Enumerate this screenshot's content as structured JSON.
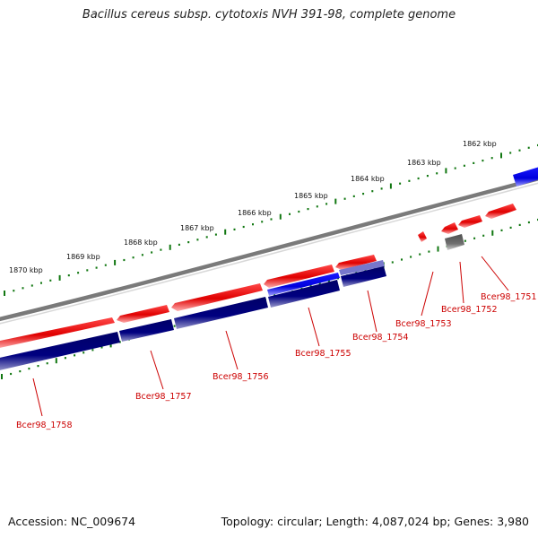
{
  "title": "Bacillus cereus subsp. cytotoxis NVH 391-98, complete genome",
  "footer": {
    "accession": "Accession: NC_009674",
    "summary": "Topology: circular; Length: 4,087,024 bp; Genes: 3,980"
  },
  "colors": {
    "forward_cds": "#ee0000",
    "reverse_cds": "#000077",
    "highlight_blue": "#0000ee",
    "backbone": "#808080",
    "ticks": "#117711",
    "labels": "#cc0000"
  },
  "kbp_marks": [
    "1862 kbp",
    "1863 kbp",
    "1864 kbp",
    "1865 kbp",
    "1866 kbp",
    "1867 kbp",
    "1868 kbp",
    "1869 kbp",
    "1870 kbp"
  ],
  "gene_labels": [
    "Bcer98_1751",
    "Bcer98_1752",
    "Bcer98_1753",
    "Bcer98_1754",
    "Bcer98_1755",
    "Bcer98_1756",
    "Bcer98_1757",
    "Bcer98_1758"
  ]
}
